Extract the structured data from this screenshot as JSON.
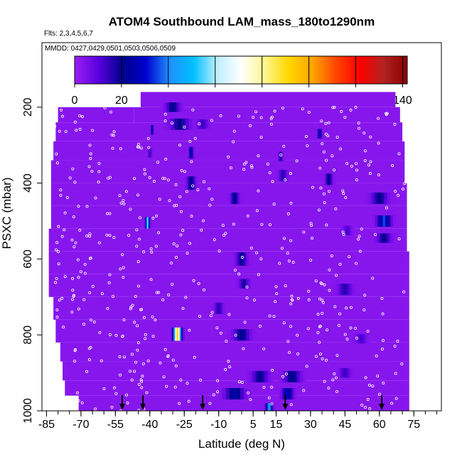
{
  "chart_data": {
    "type": "heatmap",
    "title": "ATOM4 Southbound LAM_mass_180to1290nm",
    "subtitle_flights": "Flts: 2,3,4,5,6,7",
    "subtitle_dates": "MMDD: 0427,0429,0501,0503,0506,0509",
    "xlabel": "Latitude (deg N)",
    "ylabel": "PSXC (mbar)",
    "xlim": [
      -87,
      87
    ],
    "ylim": [
      1000,
      30
    ],
    "x_ticks": [
      -85,
      -70,
      -55,
      -40,
      -25,
      -10,
      5,
      15,
      30,
      45,
      60,
      75
    ],
    "y_ticks": [
      200,
      400,
      600,
      800,
      1000
    ],
    "colorbar": {
      "min": 0,
      "max": 142,
      "ticks": [
        0,
        20,
        40,
        60,
        80,
        100,
        120,
        140
      ],
      "colors": [
        "#9a1ff2",
        "#5a00e0",
        "#00008b",
        "#0000cd",
        "#1e90ff",
        "#00bfff",
        "#bfefff",
        "#ffffff",
        "#fff68f",
        "#ffd700",
        "#ffa500",
        "#ff4500",
        "#ff0000",
        "#b22222",
        "#8b0000"
      ]
    },
    "background_value": 3,
    "coverage_rows": [
      {
        "p": 160,
        "x0": -44,
        "x1": 67
      },
      {
        "p": 200,
        "x0": -80,
        "x1": -47
      },
      {
        "p": 200,
        "x0": -47,
        "x1": 69
      },
      {
        "p": 240,
        "x0": -81,
        "x1": 70
      },
      {
        "p": 290,
        "x0": -82,
        "x1": 71
      },
      {
        "p": 340,
        "x0": -83,
        "x1": 71
      },
      {
        "p": 400,
        "x0": -83,
        "x1": 72
      },
      {
        "p": 460,
        "x0": -83,
        "x1": 72
      },
      {
        "p": 520,
        "x0": -84,
        "x1": 72
      },
      {
        "p": 580,
        "x0": -84,
        "x1": 73
      },
      {
        "p": 640,
        "x0": -84,
        "x1": 73
      },
      {
        "p": 700,
        "x0": -82,
        "x1": 73
      },
      {
        "p": 760,
        "x0": -81,
        "x1": 73
      },
      {
        "p": 820,
        "x0": -79,
        "x1": 73
      },
      {
        "p": 870,
        "x0": -78,
        "x1": 73
      },
      {
        "p": 920,
        "x0": -77,
        "x1": 73
      },
      {
        "p": 960,
        "x0": -71,
        "x1": 73
      }
    ],
    "features": [
      {
        "lat": -30,
        "p": 200,
        "v": 22,
        "w": 10,
        "h": 25
      },
      {
        "lat": -27,
        "p": 245,
        "v": 20,
        "w": 14,
        "h": 30
      },
      {
        "lat": -17,
        "p": 245,
        "v": 14,
        "w": 8,
        "h": 25
      },
      {
        "lat": -22,
        "p": 320,
        "v": 30,
        "w": 3,
        "h": 30
      },
      {
        "lat": -22,
        "p": 400,
        "v": 22,
        "w": 6,
        "h": 35
      },
      {
        "lat": -40,
        "p": 320,
        "v": 14,
        "w": 3,
        "h": 25
      },
      {
        "lat": -39,
        "p": 260,
        "v": 24,
        "w": 2,
        "h": 25
      },
      {
        "lat": -41,
        "p": 505,
        "v": 55,
        "w": 3,
        "h": 30
      },
      {
        "lat": -3,
        "p": 440,
        "v": 22,
        "w": 6,
        "h": 30
      },
      {
        "lat": 17,
        "p": 330,
        "v": 18,
        "w": 3,
        "h": 25
      },
      {
        "lat": 18,
        "p": 380,
        "v": 16,
        "w": 6,
        "h": 30
      },
      {
        "lat": 34,
        "p": 270,
        "v": 30,
        "w": 3,
        "h": 25
      },
      {
        "lat": 38,
        "p": 390,
        "v": 22,
        "w": 5,
        "h": 30
      },
      {
        "lat": 60,
        "p": 440,
        "v": 20,
        "w": 12,
        "h": 30
      },
      {
        "lat": 62,
        "p": 500,
        "v": 35,
        "w": 10,
        "h": 30
      },
      {
        "lat": 62,
        "p": 545,
        "v": 20,
        "w": 10,
        "h": 25
      },
      {
        "lat": 46,
        "p": 525,
        "v": 12,
        "w": 6,
        "h": 25
      },
      {
        "lat": 0,
        "p": 600,
        "v": 20,
        "w": 8,
        "h": 35
      },
      {
        "lat": 1,
        "p": 665,
        "v": 18,
        "w": 7,
        "h": 25
      },
      {
        "lat": -10,
        "p": 730,
        "v": 16,
        "w": 6,
        "h": 30
      },
      {
        "lat": 0,
        "p": 800,
        "v": 22,
        "w": 12,
        "h": 30
      },
      {
        "lat": -28,
        "p": 798,
        "v": 92,
        "w": 6,
        "h": 35
      },
      {
        "lat": 45,
        "p": 680,
        "v": 16,
        "w": 10,
        "h": 30
      },
      {
        "lat": 52,
        "p": 810,
        "v": 12,
        "w": 8,
        "h": 25
      },
      {
        "lat": 8,
        "p": 910,
        "v": 20,
        "w": 12,
        "h": 30
      },
      {
        "lat": 22,
        "p": 910,
        "v": 22,
        "w": 12,
        "h": 30
      },
      {
        "lat": -3,
        "p": 955,
        "v": 26,
        "w": 14,
        "h": 30
      },
      {
        "lat": 20,
        "p": 955,
        "v": 30,
        "w": 8,
        "h": 30
      },
      {
        "lat": 12,
        "p": 995,
        "v": 45,
        "w": 5,
        "h": 30
      },
      {
        "lat": 45,
        "p": 900,
        "v": 14,
        "w": 8,
        "h": 25
      }
    ],
    "arrows_lat": [
      -52,
      -43,
      -17,
      19,
      61
    ]
  }
}
